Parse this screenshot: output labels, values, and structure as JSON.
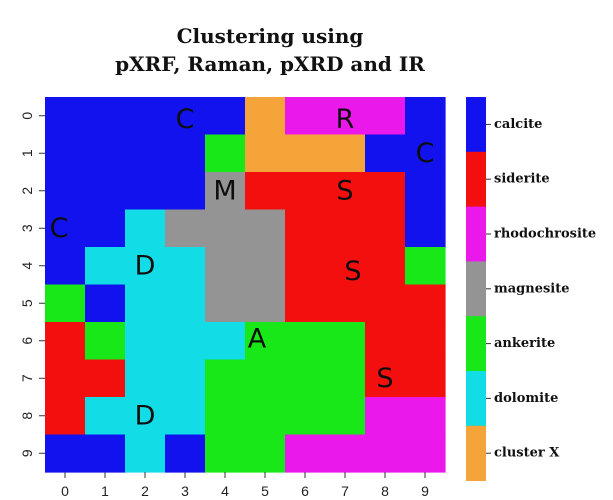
{
  "chart_data": {
    "type": "heatmap",
    "title_lines": [
      "Clustering using",
      "pXRF, Raman, pXRD and IR"
    ],
    "x_ticks": [
      "0",
      "1",
      "2",
      "3",
      "4",
      "5",
      "6",
      "7",
      "8",
      "9"
    ],
    "y_ticks": [
      "0",
      "1",
      "2",
      "3",
      "4",
      "5",
      "6",
      "7",
      "8",
      "9"
    ],
    "legend": [
      {
        "name": "calcite",
        "color": "#1212ee"
      },
      {
        "name": "siderite",
        "color": "#f40f0f"
      },
      {
        "name": "rhodochrosite",
        "color": "#ea18ea"
      },
      {
        "name": "magnesite",
        "color": "#949494"
      },
      {
        "name": "ankerite",
        "color": "#18e818"
      },
      {
        "name": "dolomite",
        "color": "#12dce6"
      },
      {
        "name": "cluster X",
        "color": "#f5a43a"
      }
    ],
    "legend_placement": "right",
    "grid": [
      [
        "calcite",
        "calcite",
        "calcite",
        "calcite",
        "calcite",
        "cluster X",
        "rhodochrosite",
        "rhodochrosite",
        "rhodochrosite",
        "calcite"
      ],
      [
        "calcite",
        "calcite",
        "calcite",
        "calcite",
        "ankerite",
        "cluster X",
        "cluster X",
        "cluster X",
        "calcite",
        "calcite"
      ],
      [
        "calcite",
        "calcite",
        "calcite",
        "calcite",
        "magnesite",
        "siderite",
        "siderite",
        "siderite",
        "siderite",
        "calcite"
      ],
      [
        "calcite",
        "calcite",
        "dolomite",
        "magnesite",
        "magnesite",
        "magnesite",
        "siderite",
        "siderite",
        "siderite",
        "calcite"
      ],
      [
        "calcite",
        "dolomite",
        "dolomite",
        "dolomite",
        "magnesite",
        "magnesite",
        "siderite",
        "siderite",
        "siderite",
        "ankerite"
      ],
      [
        "ankerite",
        "calcite",
        "dolomite",
        "dolomite",
        "magnesite",
        "magnesite",
        "siderite",
        "siderite",
        "siderite",
        "siderite"
      ],
      [
        "siderite",
        "ankerite",
        "dolomite",
        "dolomite",
        "dolomite",
        "ankerite",
        "ankerite",
        "ankerite",
        "siderite",
        "siderite"
      ],
      [
        "siderite",
        "siderite",
        "dolomite",
        "dolomite",
        "ankerite",
        "ankerite",
        "ankerite",
        "ankerite",
        "siderite",
        "siderite"
      ],
      [
        "siderite",
        "dolomite",
        "dolomite",
        "dolomite",
        "ankerite",
        "ankerite",
        "ankerite",
        "ankerite",
        "rhodochrosite",
        "rhodochrosite"
      ],
      [
        "calcite",
        "calcite",
        "dolomite",
        "calcite",
        "ankerite",
        "ankerite",
        "rhodochrosite",
        "rhodochrosite",
        "rhodochrosite",
        "rhodochrosite"
      ]
    ],
    "annotations": [
      {
        "text": "C",
        "col": 3.0,
        "row": 0.1
      },
      {
        "text": "R",
        "col": 7.0,
        "row": 0.1
      },
      {
        "text": "C",
        "col": 9.0,
        "row": 1.0
      },
      {
        "text": "M",
        "col": 4.0,
        "row": 2.0
      },
      {
        "text": "S",
        "col": 7.0,
        "row": 2.0
      },
      {
        "text": "C",
        "col": -0.15,
        "row": 3.0
      },
      {
        "text": "D",
        "col": 2.0,
        "row": 4.0
      },
      {
        "text": "S",
        "col": 7.2,
        "row": 4.15
      },
      {
        "text": "A",
        "col": 4.8,
        "row": 5.95
      },
      {
        "text": "S",
        "col": 8.0,
        "row": 7.0
      },
      {
        "text": "D",
        "col": 2.0,
        "row": 8.0
      }
    ]
  }
}
